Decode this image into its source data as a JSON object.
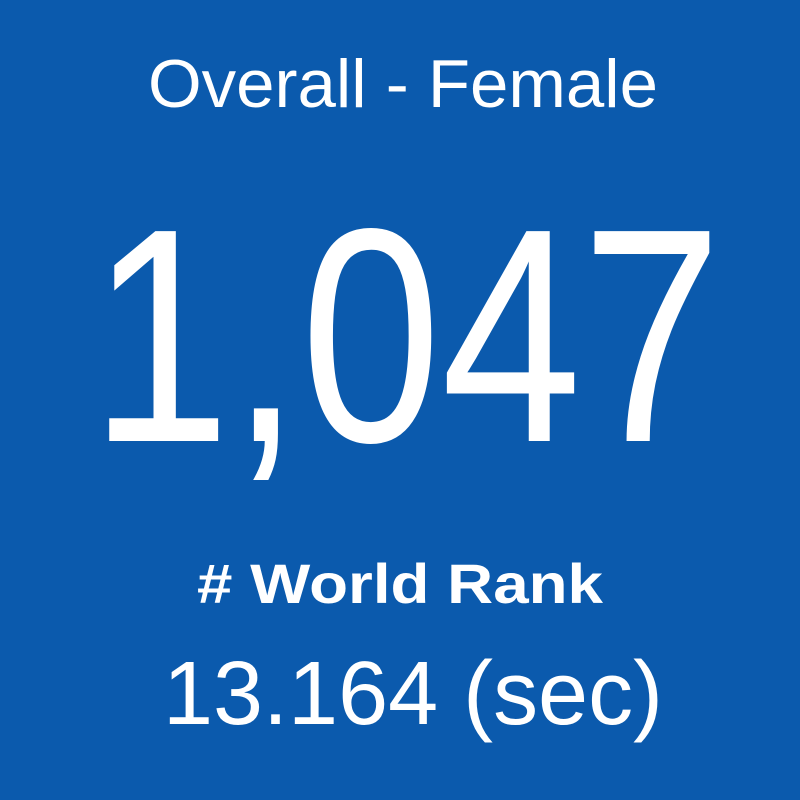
{
  "tile": {
    "title": "Overall - Female",
    "rank": "1,047",
    "rank_label": "# World Rank",
    "time": "13.164 (sec)"
  }
}
